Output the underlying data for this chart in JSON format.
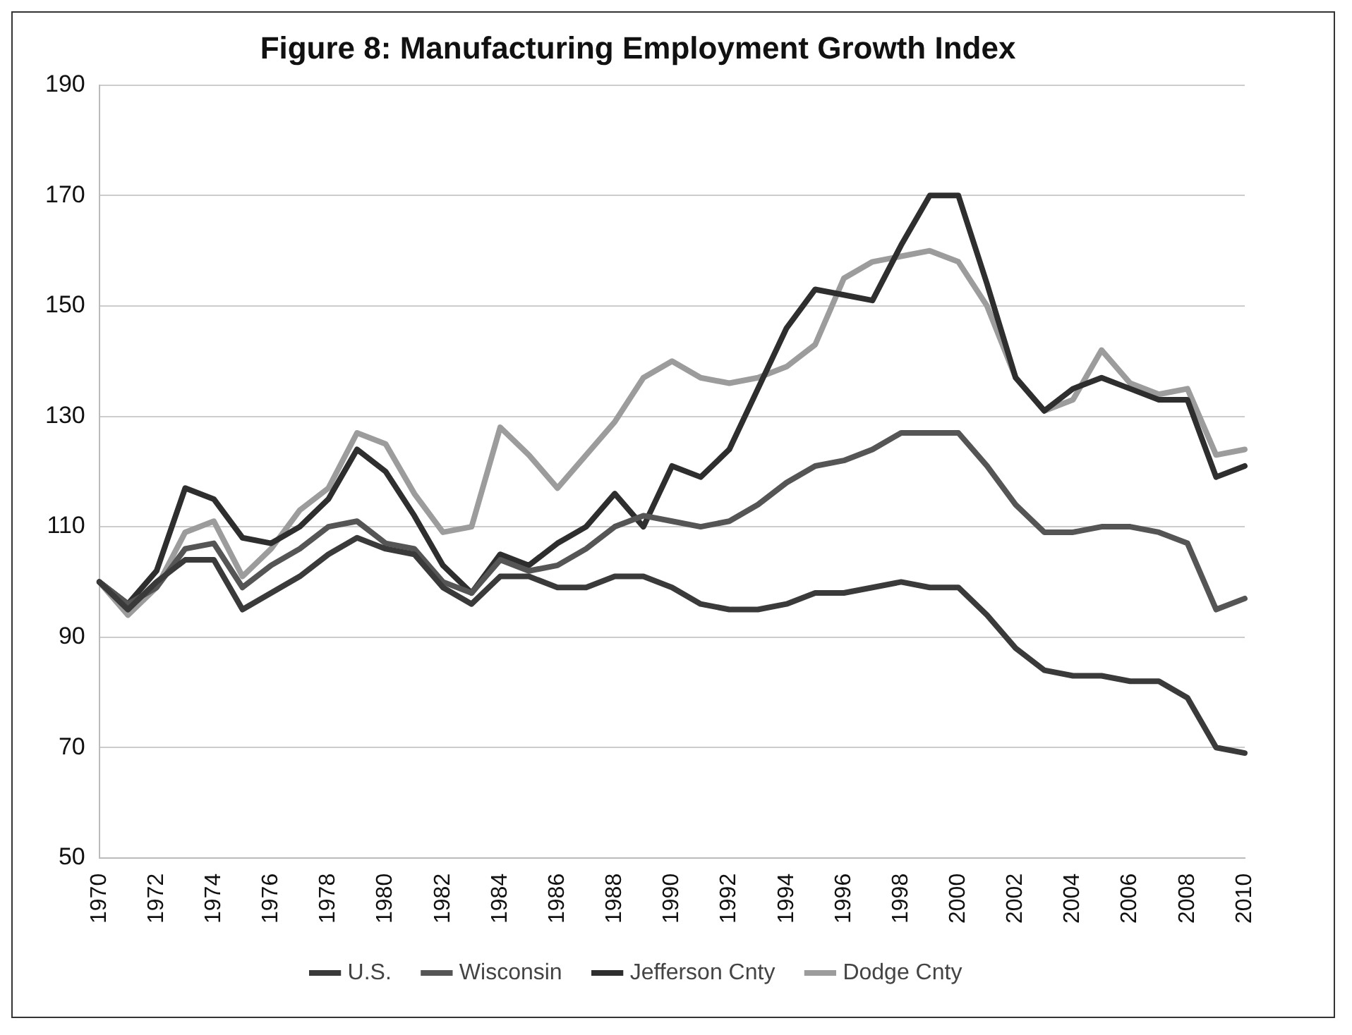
{
  "chart_data": {
    "type": "line",
    "title": "Figure 8: Manufacturing Employment Growth Index",
    "categories": [
      "1970",
      null,
      "1972",
      null,
      "1974",
      null,
      "1976",
      null,
      "1978",
      null,
      "1980",
      null,
      "1982",
      null,
      "1984",
      null,
      "1986",
      null,
      "1988",
      null,
      "1990",
      null,
      "1992",
      null,
      "1994",
      null,
      "1996",
      null,
      "1998",
      null,
      "2000",
      null,
      "2002",
      null,
      "2004",
      null,
      "2006",
      null,
      "2008",
      null,
      "2010"
    ],
    "series": [
      {
        "name": "U.S.",
        "color": "#3a3a3a",
        "values": [
          100,
          95,
          100,
          104,
          104,
          95,
          98,
          101,
          105,
          108,
          106,
          105,
          99,
          96,
          101,
          101,
          99,
          99,
          101,
          101,
          99,
          96,
          95,
          95,
          96,
          98,
          98,
          99,
          100,
          99,
          99,
          94,
          88,
          84,
          83,
          83,
          82,
          82,
          79,
          70,
          69
        ]
      },
      {
        "name": "Wisconsin",
        "color": "#555555",
        "values": [
          100,
          96,
          99,
          106,
          107,
          99,
          103,
          106,
          110,
          111,
          107,
          106,
          100,
          98,
          104,
          102,
          103,
          106,
          110,
          112,
          111,
          110,
          111,
          114,
          118,
          121,
          122,
          124,
          127,
          127,
          127,
          121,
          114,
          109,
          109,
          110,
          110,
          109,
          107,
          95,
          97
        ]
      },
      {
        "name": "Jefferson Cnty",
        "color": "#2e2e2e",
        "values": [
          100,
          96,
          102,
          117,
          115,
          108,
          107,
          110,
          115,
          124,
          120,
          112,
          103,
          98,
          105,
          103,
          107,
          110,
          116,
          110,
          121,
          119,
          124,
          135,
          146,
          153,
          152,
          151,
          161,
          170,
          170,
          154,
          137,
          131,
          135,
          137,
          135,
          133,
          133,
          119,
          121
        ]
      },
      {
        "name": "Dodge Cnty",
        "color": "#9c9c9c",
        "values": [
          100,
          94,
          99,
          109,
          111,
          101,
          106,
          113,
          117,
          127,
          125,
          116,
          109,
          110,
          128,
          123,
          117,
          123,
          129,
          137,
          140,
          137,
          136,
          137,
          139,
          143,
          155,
          158,
          159,
          160,
          158,
          150,
          137,
          131,
          133,
          142,
          136,
          134,
          135,
          123,
          124
        ]
      }
    ],
    "ylim": [
      50,
      190
    ],
    "yticks": [
      50,
      70,
      90,
      110,
      130,
      150,
      170,
      190
    ],
    "grid": "y",
    "legend": "bottom",
    "marker": "none",
    "line_style": "solid"
  }
}
